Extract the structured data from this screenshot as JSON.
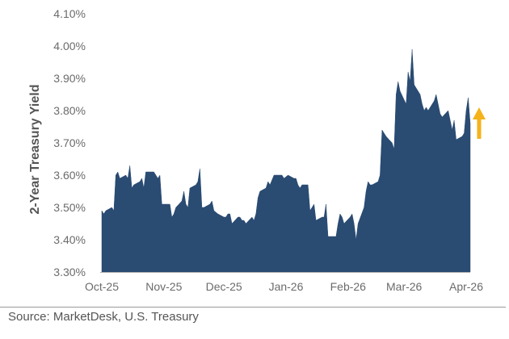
{
  "chart_data": {
    "type": "area",
    "ylabel": "2-Year Treasury Yield",
    "xlabel": "",
    "title": "",
    "ylim": [
      3.3,
      4.1
    ],
    "yticks": [
      3.3,
      3.4,
      3.5,
      3.6,
      3.7,
      3.8,
      3.9,
      4.0,
      4.1
    ],
    "ytick_labels": [
      "3.30%",
      "3.40%",
      "3.50%",
      "3.60%",
      "3.70%",
      "3.80%",
      "3.90%",
      "4.00%",
      "4.10%"
    ],
    "xtick_labels": [
      "Oct-25",
      "Nov-25",
      "Dec-25",
      "Jan-26",
      "Feb-26",
      "Mar-26",
      "Apr-26"
    ],
    "xtick_dates": [
      "2025-10-01",
      "2025-11-01",
      "2025-12-01",
      "2026-01-01",
      "2026-02-01",
      "2026-03-01",
      "2026-04-01"
    ],
    "grid": false,
    "legend": "none",
    "fill_color": "#2a4b72",
    "annotation": {
      "type": "up-arrow",
      "color": "#f5b21b"
    },
    "series": [
      {
        "x": [
          "2025-10-01",
          "2025-10-02",
          "2025-10-03",
          "2025-10-06",
          "2025-10-07",
          "2025-10-08",
          "2025-10-09",
          "2025-10-10",
          "2025-10-13",
          "2025-10-14",
          "2025-10-15",
          "2025-10-16",
          "2025-10-17",
          "2025-10-20",
          "2025-10-21",
          "2025-10-22",
          "2025-10-23",
          "2025-10-24",
          "2025-10-27",
          "2025-10-28",
          "2025-10-29",
          "2025-10-30",
          "2025-10-31",
          "2025-11-03",
          "2025-11-04",
          "2025-11-05",
          "2025-11-06",
          "2025-11-07",
          "2025-11-10",
          "2025-11-11",
          "2025-11-12",
          "2025-11-13",
          "2025-11-14",
          "2025-11-17",
          "2025-11-18",
          "2025-11-19",
          "2025-11-20",
          "2025-11-21",
          "2025-11-24",
          "2025-11-25",
          "2025-11-26",
          "2025-11-28",
          "2025-12-01",
          "2025-12-02",
          "2025-12-03",
          "2025-12-04",
          "2025-12-05",
          "2025-12-08",
          "2025-12-09",
          "2025-12-10",
          "2025-12-11",
          "2025-12-12",
          "2025-12-15",
          "2025-12-16",
          "2025-12-17",
          "2025-12-18",
          "2025-12-19",
          "2025-12-22",
          "2025-12-23",
          "2025-12-24",
          "2025-12-26",
          "2025-12-29",
          "2025-12-30",
          "2025-12-31",
          "2026-01-02",
          "2026-01-05",
          "2026-01-06",
          "2026-01-07",
          "2026-01-08",
          "2026-01-09",
          "2026-01-12",
          "2026-01-13",
          "2026-01-14",
          "2026-01-15",
          "2026-01-16",
          "2026-01-19",
          "2026-01-20",
          "2026-01-21",
          "2026-01-22",
          "2026-01-23",
          "2026-01-26",
          "2026-01-27",
          "2026-01-28",
          "2026-01-29",
          "2026-01-30",
          "2026-02-02",
          "2026-02-03",
          "2026-02-04",
          "2026-02-05",
          "2026-02-06",
          "2026-02-09",
          "2026-02-10",
          "2026-02-11",
          "2026-02-12",
          "2026-02-13",
          "2026-02-16",
          "2026-02-17",
          "2026-02-18",
          "2026-02-19",
          "2026-02-20",
          "2026-02-23",
          "2026-02-24",
          "2026-02-25",
          "2026-02-26",
          "2026-02-27",
          "2026-03-02",
          "2026-03-03",
          "2026-03-04",
          "2026-03-05",
          "2026-03-06",
          "2026-03-09",
          "2026-03-10",
          "2026-03-11",
          "2026-03-12",
          "2026-03-13",
          "2026-03-16",
          "2026-03-17",
          "2026-03-18",
          "2026-03-19",
          "2026-03-20",
          "2026-03-23",
          "2026-03-24",
          "2026-03-25",
          "2026-03-26",
          "2026-03-27",
          "2026-03-30",
          "2026-03-31",
          "2026-04-01",
          "2026-04-02",
          "2026-04-03"
        ],
        "values": [
          3.49,
          3.48,
          3.49,
          3.5,
          3.49,
          3.6,
          3.61,
          3.59,
          3.6,
          3.59,
          3.63,
          3.56,
          3.57,
          3.58,
          3.59,
          3.56,
          3.61,
          3.61,
          3.61,
          3.6,
          3.59,
          3.6,
          3.51,
          3.51,
          3.51,
          3.47,
          3.48,
          3.5,
          3.52,
          3.55,
          3.51,
          3.5,
          3.56,
          3.57,
          3.58,
          3.62,
          3.5,
          3.5,
          3.51,
          3.52,
          3.49,
          3.48,
          3.47,
          3.47,
          3.48,
          3.48,
          3.45,
          3.47,
          3.47,
          3.46,
          3.46,
          3.45,
          3.47,
          3.46,
          3.48,
          3.53,
          3.55,
          3.56,
          3.58,
          3.57,
          3.6,
          3.6,
          3.6,
          3.59,
          3.6,
          3.59,
          3.59,
          3.57,
          3.56,
          3.57,
          3.57,
          3.49,
          3.5,
          3.51,
          3.46,
          3.47,
          3.47,
          3.51,
          3.41,
          3.41,
          3.41,
          3.45,
          3.48,
          3.47,
          3.45,
          3.47,
          3.48,
          3.45,
          3.4,
          3.45,
          3.5,
          3.55,
          3.58,
          3.57,
          3.57,
          3.58,
          3.6,
          3.74,
          3.73,
          3.72,
          3.7,
          3.68,
          3.85,
          3.89,
          3.86,
          3.82,
          3.92,
          3.89,
          3.99,
          3.88,
          3.85,
          3.82,
          3.8,
          3.81,
          3.8,
          3.83,
          3.85,
          3.82,
          3.79,
          3.78,
          3.8,
          3.77,
          3.74,
          3.77,
          3.71,
          3.72,
          3.73,
          3.8,
          3.84,
          3.76
        ]
      }
    ]
  },
  "footer": {
    "source_text": "Source: MarketDesk, U.S. Treasury"
  }
}
